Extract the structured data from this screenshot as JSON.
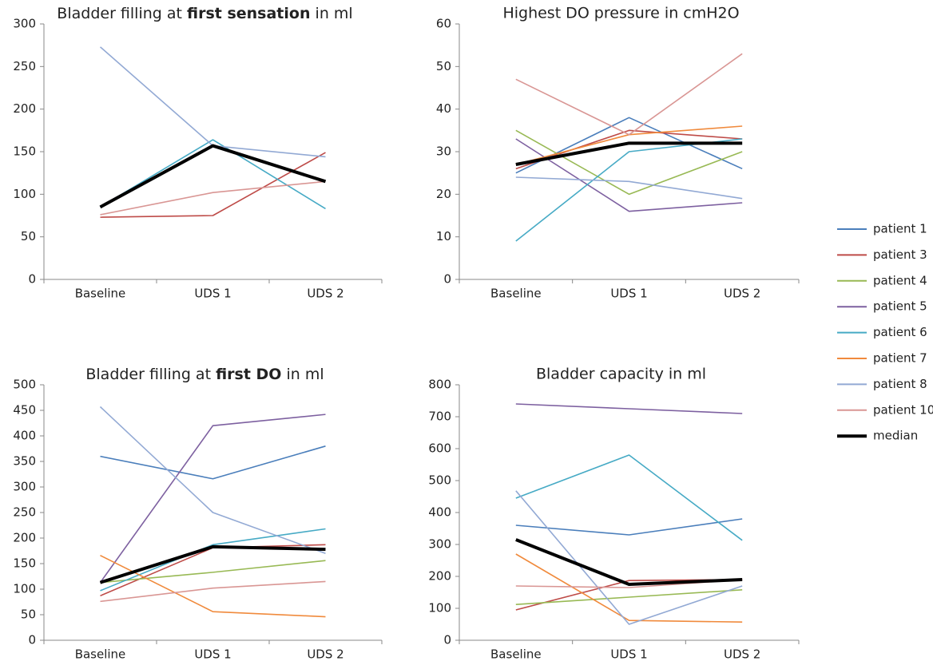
{
  "chart_data": [
    {
      "type": "line",
      "title": [
        "Bladder filling at ",
        "first sensation",
        " in ml"
      ],
      "categories": [
        "Baseline",
        "UDS 1",
        "UDS 2"
      ],
      "ylim": [
        0,
        300
      ],
      "yticks": [
        0,
        50,
        100,
        150,
        200,
        250,
        300
      ],
      "series": [
        {
          "values": [
            null,
            null,
            null
          ]
        },
        {
          "values": [
            73,
            75,
            149
          ]
        },
        {
          "values": [
            null,
            null,
            null
          ]
        },
        {
          "values": [
            null,
            null,
            null
          ]
        },
        {
          "values": [
            85,
            164,
            83
          ]
        },
        {
          "values": [
            null,
            null,
            null
          ]
        },
        {
          "values": [
            273,
            157,
            144
          ]
        },
        {
          "values": [
            76,
            102,
            115
          ]
        },
        {
          "values": [
            85,
            157,
            115
          ]
        }
      ]
    },
    {
      "type": "line",
      "title": "Highest DO pressure in cmH2O",
      "categories": [
        "Baseline",
        "UDS 1",
        "UDS 2"
      ],
      "ylim": [
        0,
        60
      ],
      "yticks": [
        0,
        10,
        20,
        30,
        40,
        50,
        60
      ],
      "series": [
        {
          "values": [
            25,
            38,
            26
          ]
        },
        {
          "values": [
            26,
            35,
            33
          ]
        },
        {
          "values": [
            35,
            20,
            30
          ]
        },
        {
          "values": [
            33,
            16,
            18
          ]
        },
        {
          "values": [
            9,
            30,
            33
          ]
        },
        {
          "values": [
            27,
            34,
            36
          ]
        },
        {
          "values": [
            24,
            23,
            19
          ]
        },
        {
          "values": [
            47,
            34,
            53
          ]
        },
        {
          "values": [
            27,
            32,
            32
          ]
        }
      ]
    },
    {
      "type": "line",
      "title": [
        "Bladder filling at ",
        "first DO",
        " in ml"
      ],
      "categories": [
        "Baseline",
        "UDS 1",
        "UDS 2"
      ],
      "ylim": [
        0,
        500
      ],
      "yticks": [
        0,
        50,
        100,
        150,
        200,
        250,
        300,
        350,
        400,
        450,
        500
      ],
      "series": [
        {
          "values": [
            360,
            316,
            380
          ]
        },
        {
          "values": [
            87,
            181,
            187
          ]
        },
        {
          "values": [
            113,
            133,
            156
          ]
        },
        {
          "values": [
            113,
            420,
            442
          ]
        },
        {
          "values": [
            97,
            187,
            218
          ]
        },
        {
          "values": [
            166,
            56,
            46
          ]
        },
        {
          "values": [
            457,
            250,
            170
          ]
        },
        {
          "values": [
            76,
            102,
            115
          ]
        },
        {
          "values": [
            113,
            183,
            178
          ]
        }
      ]
    },
    {
      "type": "line",
      "title": "Bladder capacity in ml",
      "categories": [
        "Baseline",
        "UDS 1",
        "UDS 2"
      ],
      "ylim": [
        0,
        800
      ],
      "yticks": [
        0,
        100,
        200,
        300,
        400,
        500,
        600,
        700,
        800
      ],
      "series": [
        {
          "values": [
            360,
            330,
            380
          ]
        },
        {
          "values": [
            95,
            187,
            190
          ]
        },
        {
          "values": [
            112,
            135,
            158
          ]
        },
        {
          "values": [
            740,
            725,
            710
          ]
        },
        {
          "values": [
            445,
            580,
            313
          ]
        },
        {
          "values": [
            270,
            62,
            57
          ]
        },
        {
          "values": [
            468,
            50,
            170
          ]
        },
        {
          "values": [
            170,
            165,
            190
          ]
        },
        {
          "values": [
            315,
            175,
            190
          ]
        }
      ]
    }
  ],
  "legend": [
    {
      "name": "patient 1",
      "color": "#4a7ebb"
    },
    {
      "name": "patient 3",
      "color": "#be4b48"
    },
    {
      "name": "patient 4",
      "color": "#98b954"
    },
    {
      "name": "patient 5",
      "color": "#7d60a0"
    },
    {
      "name": "patient 6",
      "color": "#46aac5"
    },
    {
      "name": "patient 7",
      "color": "#f08a3c"
    },
    {
      "name": "patient 8",
      "color": "#92a9d4"
    },
    {
      "name": "patient 10",
      "color": "#d99694"
    },
    {
      "name": "median",
      "color": "#000000",
      "line_width": 4
    }
  ]
}
